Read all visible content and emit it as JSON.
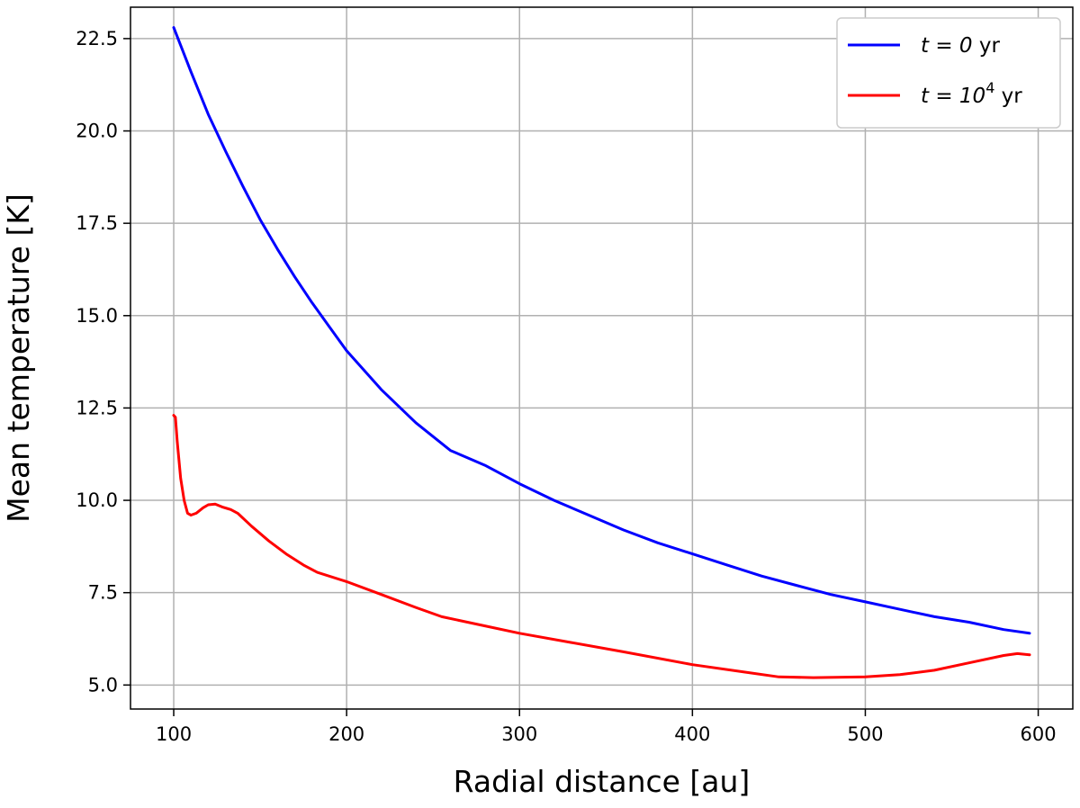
{
  "chart_data": {
    "type": "line",
    "title": "",
    "xlabel": "Radial distance [au]",
    "ylabel": "Mean temperature [K]",
    "xlim": [
      75,
      620
    ],
    "ylim": [
      4.35,
      23.35
    ],
    "xticks": [
      100,
      200,
      300,
      400,
      500,
      600
    ],
    "xtick_labels": [
      "100",
      "200",
      "300",
      "400",
      "500",
      "600"
    ],
    "yticks": [
      5.0,
      7.5,
      10.0,
      12.5,
      15.0,
      17.5,
      20.0,
      22.5
    ],
    "ytick_labels": [
      "5.0",
      "7.5",
      "10.0",
      "12.5",
      "15.0",
      "17.5",
      "20.0",
      "22.5"
    ],
    "grid": true,
    "legend_position": "top-right",
    "series": [
      {
        "name_main": "t = 0",
        "name_unit": " yr",
        "color": "#0000ff",
        "x": [
          100,
          110,
          120,
          130,
          140,
          150,
          160,
          170,
          180,
          190,
          200,
          220,
          240,
          260,
          280,
          300,
          320,
          340,
          360,
          380,
          400,
          420,
          440,
          460,
          480,
          500,
          520,
          540,
          560,
          580,
          595
        ],
        "y": [
          22.8,
          21.6,
          20.45,
          19.45,
          18.5,
          17.6,
          16.8,
          16.05,
          15.35,
          14.7,
          14.05,
          13.0,
          12.1,
          11.35,
          10.95,
          10.45,
          10.0,
          9.6,
          9.2,
          8.85,
          8.55,
          8.25,
          7.95,
          7.7,
          7.45,
          7.25,
          7.05,
          6.85,
          6.7,
          6.5,
          6.4
        ]
      },
      {
        "name_main": "t = 10",
        "name_sup": "4",
        "name_unit": " yr",
        "color": "#ff0000",
        "x": [
          100,
          101,
          102,
          104,
          106,
          108,
          110,
          113,
          117,
          120,
          124,
          128,
          133,
          137,
          145,
          155,
          165,
          175,
          183,
          200,
          220,
          240,
          255,
          280,
          300,
          330,
          360,
          400,
          430,
          450,
          470,
          500,
          520,
          540,
          560,
          580,
          588,
          595
        ],
        "y": [
          12.3,
          12.25,
          11.6,
          10.6,
          10.0,
          9.65,
          9.6,
          9.65,
          9.8,
          9.88,
          9.9,
          9.82,
          9.75,
          9.65,
          9.3,
          8.9,
          8.55,
          8.25,
          8.05,
          7.8,
          7.45,
          7.1,
          6.85,
          6.6,
          6.4,
          6.15,
          5.9,
          5.55,
          5.35,
          5.22,
          5.2,
          5.22,
          5.28,
          5.4,
          5.6,
          5.8,
          5.85,
          5.82
        ]
      }
    ]
  }
}
